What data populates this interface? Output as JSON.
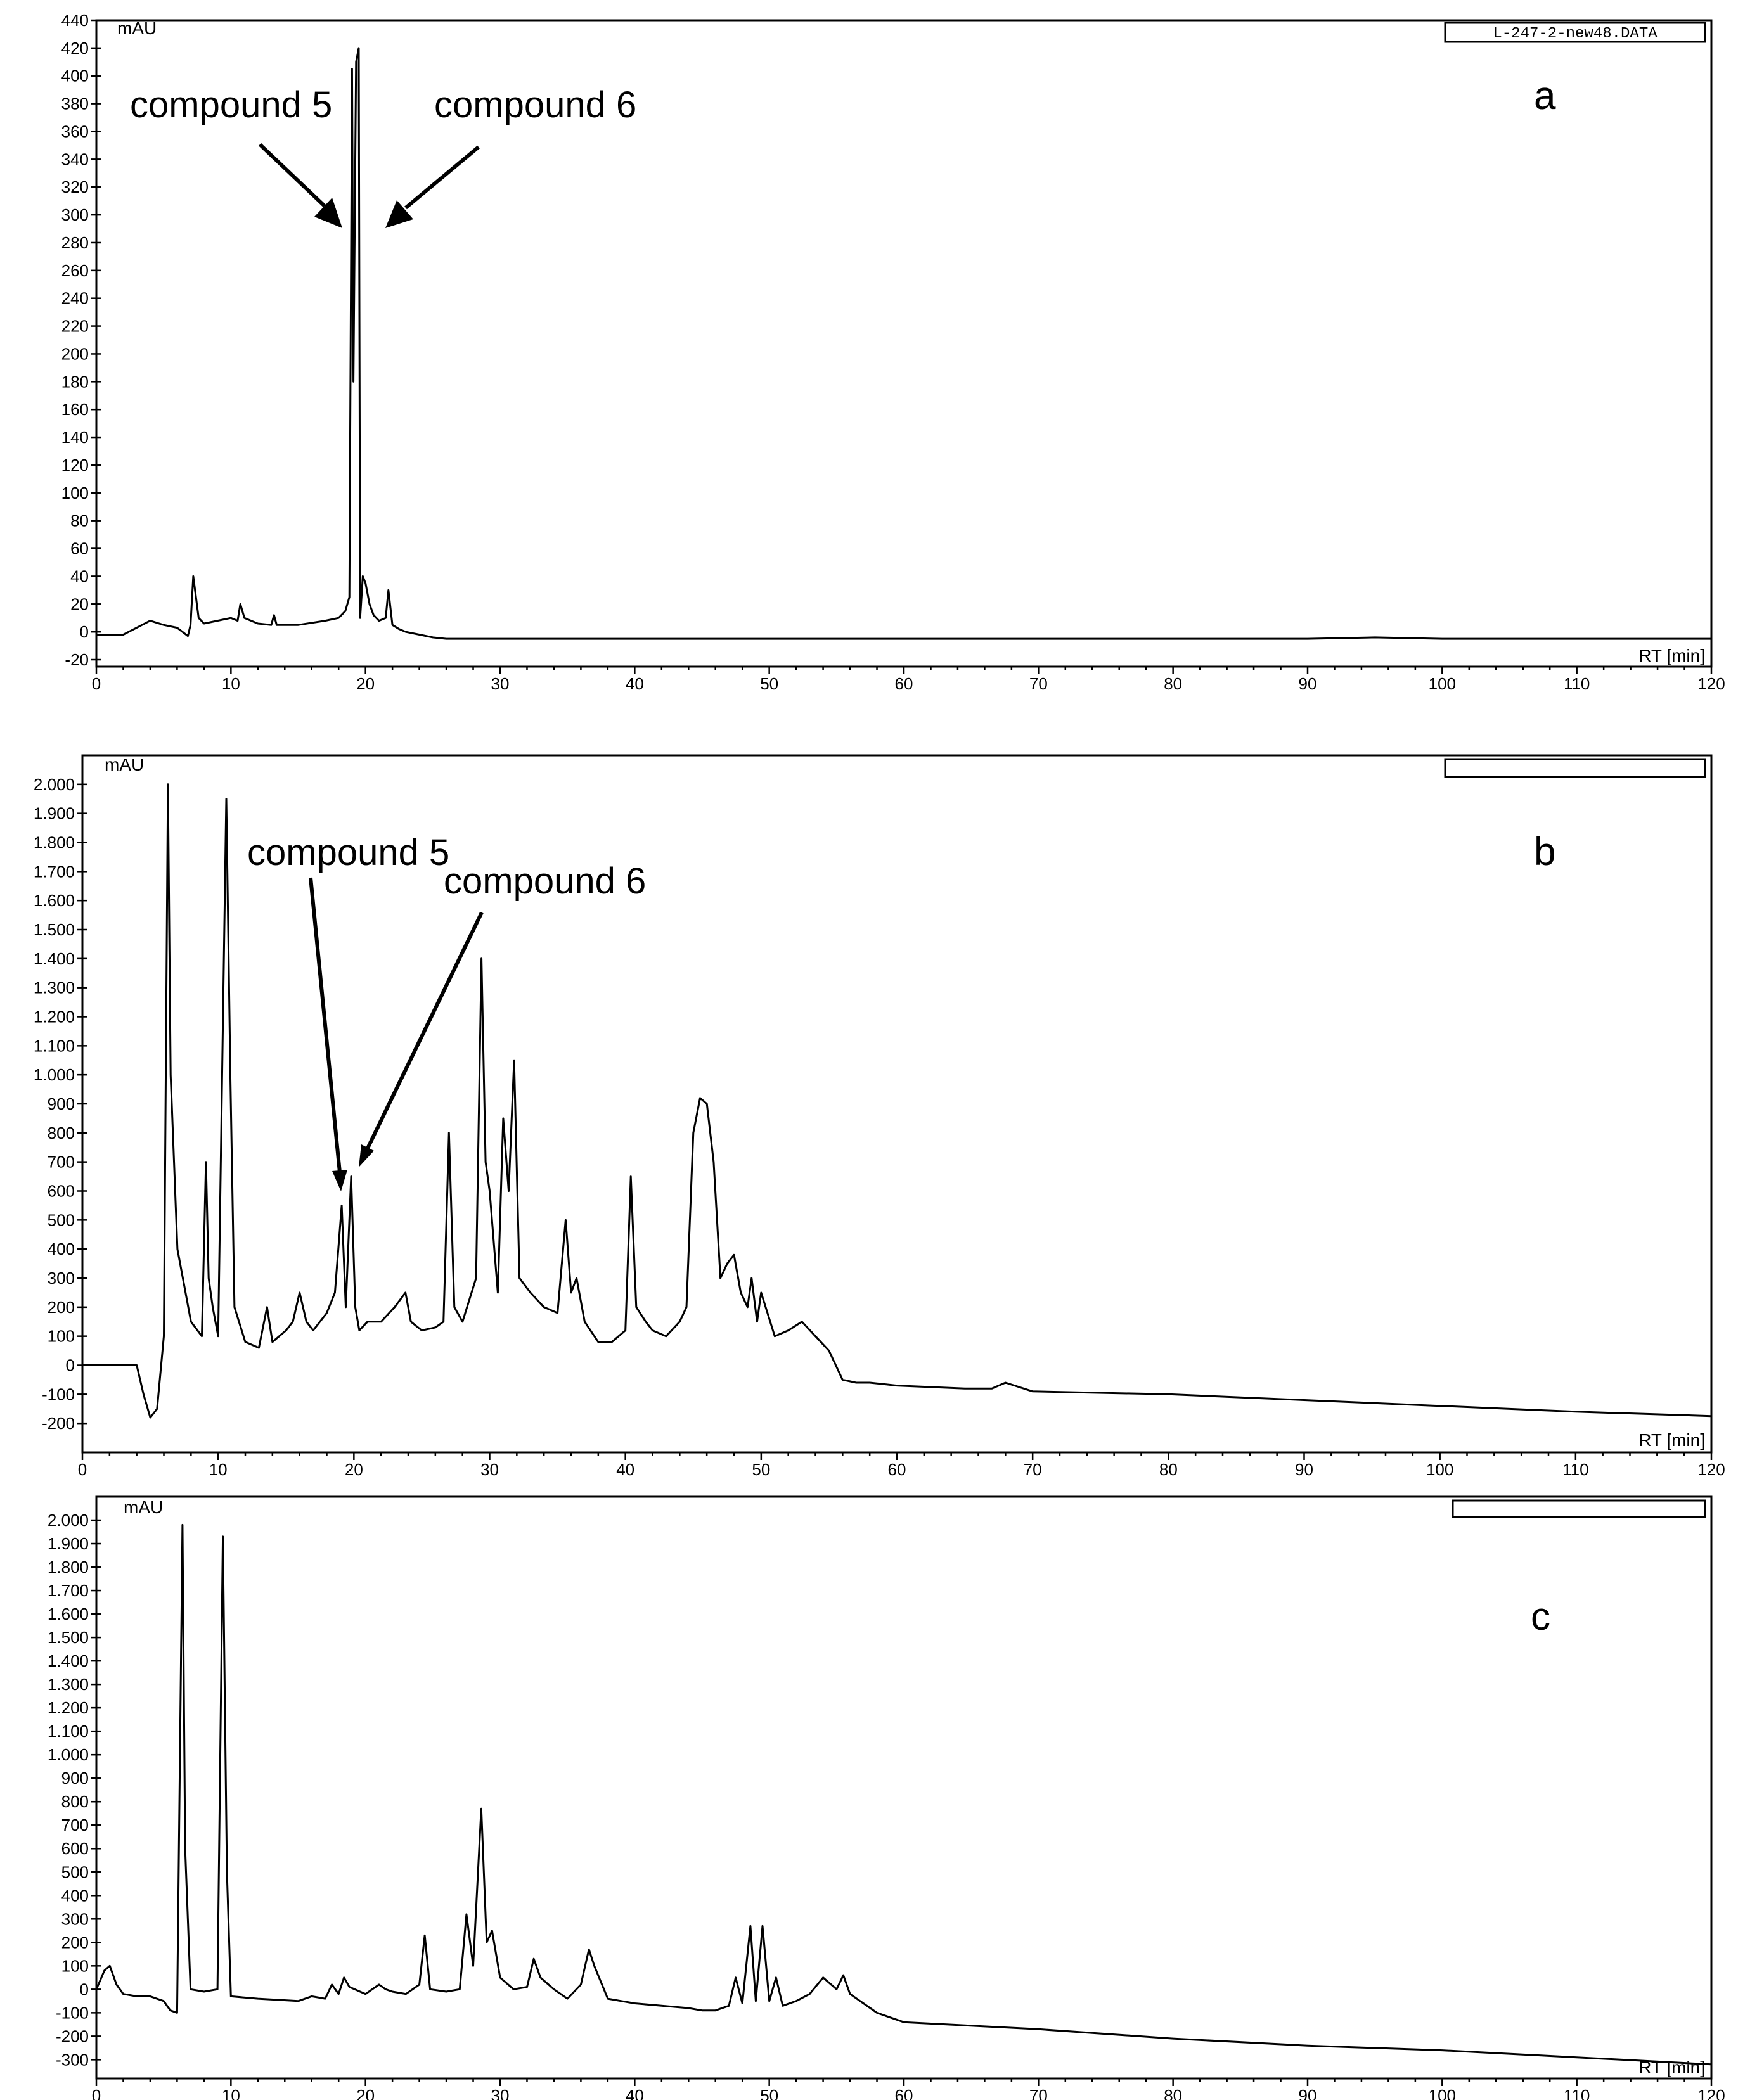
{
  "chart_data": [
    {
      "type": "line",
      "panel_label": "a",
      "y_unit_label": "mAU",
      "x_unit_label": "RT [min]",
      "file_label": "L-247-2-new48.DATA",
      "xlim": [
        0,
        120
      ],
      "ylim": [
        -25,
        440
      ],
      "x_ticks": [
        "0",
        "10",
        "20",
        "30",
        "40",
        "50",
        "60",
        "70",
        "80",
        "90",
        "100",
        "110",
        "120"
      ],
      "y_ticks": [
        {
          "v": -20,
          "t": "-20"
        },
        {
          "v": 0,
          "t": "0"
        },
        {
          "v": 20,
          "t": "20"
        },
        {
          "v": 40,
          "t": "40"
        },
        {
          "v": 60,
          "t": "60"
        },
        {
          "v": 80,
          "t": "80"
        },
        {
          "v": 100,
          "t": "100"
        },
        {
          "v": 120,
          "t": "120"
        },
        {
          "v": 140,
          "t": "140"
        },
        {
          "v": 160,
          "t": "160"
        },
        {
          "v": 180,
          "t": "180"
        },
        {
          "v": 200,
          "t": "200"
        },
        {
          "v": 220,
          "t": "220"
        },
        {
          "v": 240,
          "t": "240"
        },
        {
          "v": 260,
          "t": "260"
        },
        {
          "v": 280,
          "t": "280"
        },
        {
          "v": 300,
          "t": "300"
        },
        {
          "v": 320,
          "t": "320"
        },
        {
          "v": 340,
          "t": "340"
        },
        {
          "v": 360,
          "t": "360"
        },
        {
          "v": 380,
          "t": "380"
        },
        {
          "v": 400,
          "t": "400"
        },
        {
          "v": 420,
          "t": "420"
        },
        {
          "v": 440,
          "t": "440"
        }
      ],
      "x": [
        0,
        2,
        3,
        4,
        5,
        6,
        6.8,
        7,
        7.2,
        7.6,
        8,
        9,
        10,
        10.5,
        10.7,
        11,
        12,
        13,
        13.2,
        13.4,
        15,
        17,
        18,
        18.5,
        18.8,
        19,
        19.1,
        19.3,
        19.5,
        19.6,
        19.8,
        20,
        20.3,
        20.6,
        21,
        21.5,
        21.7,
        22,
        22.5,
        23,
        24,
        25,
        26,
        27,
        30,
        40,
        50,
        60,
        70,
        80,
        90,
        95,
        100,
        110,
        120
      ],
      "values": [
        -2,
        -2,
        3,
        8,
        5,
        3,
        -3,
        5,
        40,
        10,
        6,
        8,
        10,
        8,
        20,
        10,
        6,
        5,
        12,
        5,
        5,
        8,
        10,
        15,
        25,
        405,
        180,
        410,
        420,
        10,
        40,
        35,
        20,
        12,
        8,
        10,
        30,
        5,
        2,
        0,
        -2,
        -4,
        -5,
        -5,
        -5,
        -5,
        -5,
        -5,
        -5,
        -5,
        -5,
        -4,
        -5,
        -5,
        -5
      ],
      "annotations": [
        {
          "text": "compound 5",
          "x": 19.0,
          "y": 405
        },
        {
          "text": "compound 6",
          "x": 19.6,
          "y": 415
        }
      ]
    },
    {
      "type": "line",
      "panel_label": "b",
      "y_unit_label": "mAU",
      "x_unit_label": "RT [min]",
      "xlim": [
        0,
        120
      ],
      "ylim": [
        -300,
        2100
      ],
      "x_ticks": [
        "0",
        "10",
        "20",
        "30",
        "40",
        "50",
        "60",
        "70",
        "80",
        "90",
        "100",
        "110",
        "120"
      ],
      "y_ticks": [
        {
          "v": -200,
          "t": "-200"
        },
        {
          "v": -100,
          "t": "-100"
        },
        {
          "v": 0,
          "t": "0"
        },
        {
          "v": 100,
          "t": "100"
        },
        {
          "v": 200,
          "t": "200"
        },
        {
          "v": 300,
          "t": "300"
        },
        {
          "v": 400,
          "t": "400"
        },
        {
          "v": 500,
          "t": "500"
        },
        {
          "v": 600,
          "t": "600"
        },
        {
          "v": 700,
          "t": "700"
        },
        {
          "v": 800,
          "t": "800"
        },
        {
          "v": 900,
          "t": "900"
        },
        {
          "v": 1000,
          "t": "1.000"
        },
        {
          "v": 1100,
          "t": "1.100"
        },
        {
          "v": 1200,
          "t": "1.200"
        },
        {
          "v": 1300,
          "t": "1.300"
        },
        {
          "v": 1400,
          "t": "1.400"
        },
        {
          "v": 1500,
          "t": "1.500"
        },
        {
          "v": 1600,
          "t": "1.600"
        },
        {
          "v": 1700,
          "t": "1.700"
        },
        {
          "v": 1800,
          "t": "1.800"
        },
        {
          "v": 1900,
          "t": "1.900"
        },
        {
          "v": 2000,
          "t": "2.000"
        }
      ],
      "x": [
        0,
        4,
        4.5,
        5,
        5.5,
        6,
        6.3,
        6.5,
        7,
        8,
        8.8,
        9.1,
        9.3,
        9.6,
        10,
        10.6,
        10.9,
        11.2,
        12,
        13,
        13.6,
        14,
        15,
        15.5,
        16,
        16.5,
        17,
        18,
        18.6,
        19.1,
        19.4,
        19.8,
        20.1,
        20.4,
        21,
        22,
        23,
        23.8,
        24.2,
        25,
        26,
        26.6,
        27,
        27.4,
        28,
        29,
        29.4,
        29.7,
        30,
        30.6,
        31,
        31.4,
        31.8,
        32.2,
        33,
        34,
        35,
        35.6,
        36,
        36.4,
        37,
        38,
        39,
        40,
        40.4,
        40.8,
        41.5,
        42,
        43,
        44,
        44.5,
        45,
        45.5,
        46,
        46.5,
        47,
        47.5,
        48,
        48.5,
        49,
        49.3,
        49.7,
        50,
        51,
        52,
        53,
        54,
        55,
        56,
        57,
        58,
        60,
        65,
        67,
        68,
        70,
        80,
        90,
        100,
        110,
        120
      ],
      "values": [
        0,
        0,
        -100,
        -180,
        -150,
        100,
        2000,
        1000,
        400,
        150,
        100,
        700,
        300,
        200,
        100,
        1950,
        1000,
        200,
        80,
        60,
        200,
        80,
        120,
        150,
        250,
        150,
        120,
        180,
        250,
        550,
        200,
        650,
        200,
        120,
        150,
        150,
        200,
        250,
        150,
        120,
        130,
        150,
        800,
        200,
        150,
        300,
        1400,
        700,
        600,
        250,
        850,
        600,
        1050,
        300,
        250,
        200,
        180,
        500,
        250,
        300,
        150,
        80,
        80,
        120,
        650,
        200,
        150,
        120,
        100,
        150,
        200,
        800,
        920,
        900,
        700,
        300,
        350,
        380,
        250,
        200,
        300,
        150,
        250,
        100,
        120,
        150,
        100,
        50,
        -50,
        -60,
        -60,
        -70,
        -80,
        -80,
        -60,
        -90,
        -100,
        -120,
        -140,
        -160,
        -175
      ],
      "annotations": [
        {
          "text": "compound 5",
          "x": 19.1,
          "y": 550
        },
        {
          "text": "compound 6",
          "x": 19.8,
          "y": 650
        }
      ]
    },
    {
      "type": "line",
      "panel_label": "c",
      "y_unit_label": "mAU",
      "x_unit_label": "RT [min]",
      "xlim": [
        0,
        120
      ],
      "ylim": [
        -380,
        2100
      ],
      "x_ticks": [
        "0",
        "10",
        "20",
        "30",
        "40",
        "50",
        "60",
        "70",
        "80",
        "90",
        "100",
        "110",
        "120"
      ],
      "y_ticks": [
        {
          "v": -300,
          "t": "-300"
        },
        {
          "v": -200,
          "t": "-200"
        },
        {
          "v": -100,
          "t": "-100"
        },
        {
          "v": 0,
          "t": "0"
        },
        {
          "v": 100,
          "t": "100"
        },
        {
          "v": 200,
          "t": "200"
        },
        {
          "v": 300,
          "t": "300"
        },
        {
          "v": 400,
          "t": "400"
        },
        {
          "v": 500,
          "t": "500"
        },
        {
          "v": 600,
          "t": "600"
        },
        {
          "v": 700,
          "t": "700"
        },
        {
          "v": 800,
          "t": "800"
        },
        {
          "v": 900,
          "t": "900"
        },
        {
          "v": 1000,
          "t": "1.000"
        },
        {
          "v": 1100,
          "t": "1.100"
        },
        {
          "v": 1200,
          "t": "1.200"
        },
        {
          "v": 1300,
          "t": "1.300"
        },
        {
          "v": 1400,
          "t": "1.400"
        },
        {
          "v": 1500,
          "t": "1.500"
        },
        {
          "v": 1600,
          "t": "1.600"
        },
        {
          "v": 1700,
          "t": "1.700"
        },
        {
          "v": 1800,
          "t": "1.800"
        },
        {
          "v": 1900,
          "t": "1.900"
        },
        {
          "v": 2000,
          "t": "2.000"
        }
      ],
      "x": [
        0,
        0.6,
        1,
        1.5,
        2,
        3,
        4,
        5,
        5.5,
        6,
        6.4,
        6.6,
        7,
        8,
        9,
        9.4,
        9.7,
        10,
        12,
        15,
        16,
        17,
        17.5,
        18,
        18.4,
        18.8,
        20,
        21,
        21.5,
        22,
        23,
        24,
        24.4,
        24.8,
        26,
        27,
        27.5,
        28,
        28.6,
        29,
        29.4,
        30,
        31,
        32,
        32.5,
        33,
        34,
        35,
        36,
        36.6,
        37,
        38,
        39,
        40,
        42,
        44,
        45,
        46,
        47,
        47.5,
        48,
        48.6,
        49,
        49.5,
        50,
        50.5,
        51,
        52,
        53,
        54,
        55,
        55.5,
        56,
        58,
        60,
        70,
        80,
        90,
        100,
        110,
        120
      ],
      "values": [
        0,
        80,
        100,
        20,
        -20,
        -30,
        -30,
        -50,
        -90,
        -100,
        1980,
        600,
        0,
        -10,
        0,
        1930,
        500,
        -30,
        -40,
        -50,
        -30,
        -40,
        20,
        -20,
        50,
        10,
        -20,
        20,
        0,
        -10,
        -20,
        20,
        230,
        0,
        -10,
        0,
        320,
        100,
        770,
        200,
        250,
        50,
        0,
        10,
        130,
        50,
        0,
        -40,
        20,
        170,
        100,
        -40,
        -50,
        -60,
        -70,
        -80,
        -90,
        -90,
        -70,
        50,
        -60,
        270,
        -50,
        270,
        -50,
        50,
        -70,
        -50,
        -20,
        50,
        0,
        60,
        -20,
        -100,
        -140,
        -170,
        -210,
        -240,
        -260,
        -290,
        -320
      ],
      "annotations": []
    }
  ]
}
